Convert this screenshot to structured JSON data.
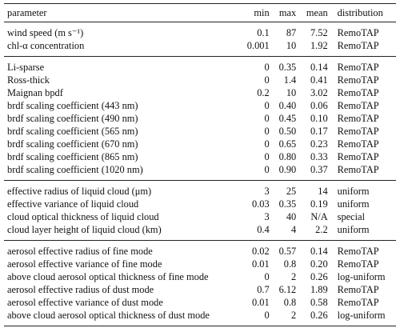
{
  "header": {
    "parameter": "parameter",
    "min": "min",
    "max": "max",
    "mean": "mean",
    "distribution": "distribution"
  },
  "groups": [
    {
      "rows": [
        {
          "parameter": "wind speed (m s⁻¹)",
          "min": "0.1",
          "max": "87",
          "mean": "7.52",
          "distribution": "RemoTAP"
        },
        {
          "parameter": "chl-α concentration",
          "min": "0.001",
          "max": "10",
          "mean": "1.92",
          "distribution": "RemoTAP"
        }
      ]
    },
    {
      "rows": [
        {
          "parameter": "Li-sparse",
          "min": "0",
          "max": "0.35",
          "mean": "0.14",
          "distribution": "RemoTAP"
        },
        {
          "parameter": "Ross-thick",
          "min": "0",
          "max": "1.4",
          "mean": "0.41",
          "distribution": "RemoTAP"
        },
        {
          "parameter": "Maignan bpdf",
          "min": "0.2",
          "max": "10",
          "mean": "3.02",
          "distribution": "RemoTAP"
        },
        {
          "parameter": "brdf scaling coefficient (443 nm)",
          "min": "0",
          "max": "0.40",
          "mean": "0.06",
          "distribution": "RemoTAP"
        },
        {
          "parameter": "brdf scaling coefficient (490 nm)",
          "min": "0",
          "max": "0.45",
          "mean": "0.10",
          "distribution": "RemoTAP"
        },
        {
          "parameter": "brdf scaling coefficient (565 nm)",
          "min": "0",
          "max": "0.50",
          "mean": "0.17",
          "distribution": "RemoTAP"
        },
        {
          "parameter": "brdf scaling coefficient (670 nm)",
          "min": "0",
          "max": "0.65",
          "mean": "0.23",
          "distribution": "RemoTAP"
        },
        {
          "parameter": "brdf scaling coefficient (865 nm)",
          "min": "0",
          "max": "0.80",
          "mean": "0.33",
          "distribution": "RemoTAP"
        },
        {
          "parameter": "brdf scaling coefficient (1020 nm)",
          "min": "0",
          "max": "0.90",
          "mean": "0.37",
          "distribution": "RemoTAP"
        }
      ]
    },
    {
      "rows": [
        {
          "parameter": "effective radius of liquid cloud (μm)",
          "min": "3",
          "max": "25",
          "mean": "14",
          "distribution": "uniform"
        },
        {
          "parameter": "effective variance of liquid cloud",
          "min": "0.03",
          "max": "0.35",
          "mean": "0.19",
          "distribution": "uniform"
        },
        {
          "parameter": "cloud optical thickness of liquid cloud",
          "min": "3",
          "max": "40",
          "mean": "N/A",
          "distribution": "special"
        },
        {
          "parameter": "cloud layer height of liquid cloud (km)",
          "min": "0.4",
          "max": "4",
          "mean": "2.2",
          "distribution": "uniform"
        }
      ]
    },
    {
      "rows": [
        {
          "parameter": "aerosol effective radius of fine mode",
          "min": "0.02",
          "max": "0.57",
          "mean": "0.14",
          "distribution": "RemoTAP"
        },
        {
          "parameter": "aerosol effective variance of fine mode",
          "min": "0.01",
          "max": "0.8",
          "mean": "0.20",
          "distribution": "RemoTAP"
        },
        {
          "parameter": "above cloud aerosol optical thickness of fine mode",
          "min": "0",
          "max": "2",
          "mean": "0.26",
          "distribution": "log-uniform"
        },
        {
          "parameter": "aerosol effective radius of dust mode",
          "min": "0.7",
          "max": "6.12",
          "mean": "1.89",
          "distribution": "RemoTAP"
        },
        {
          "parameter": "aerosol effective variance of dust mode",
          "min": "0.01",
          "max": "0.8",
          "mean": "0.58",
          "distribution": "RemoTAP"
        },
        {
          "parameter": "above cloud aerosol optical thickness of dust mode",
          "min": "0",
          "max": "2",
          "mean": "0.26",
          "distribution": "log-uniform"
        }
      ]
    }
  ]
}
